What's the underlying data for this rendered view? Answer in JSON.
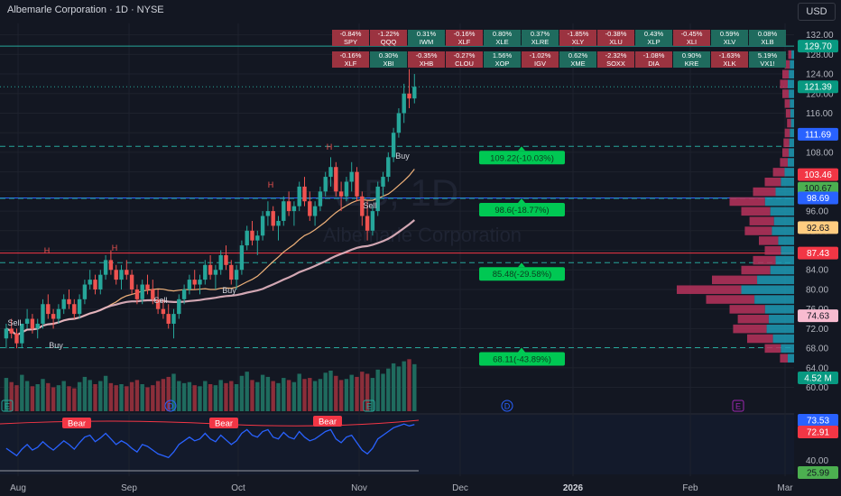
{
  "header": {
    "title": "Albemarle Corporation · 1D · NYSE",
    "currency_button": "USD"
  },
  "watermark": {
    "symbol": "ALB, 1D",
    "name": "Albemarle Corporation"
  },
  "colors": {
    "background": "#131722",
    "up": "#26a69a",
    "down": "#ef5350",
    "grid": "#1e222d",
    "text": "#d1d4dc"
  },
  "tiles": [
    {
      "pct": "-0.84%",
      "sym": "SPY",
      "dir": "dn"
    },
    {
      "pct": "-1.22%",
      "sym": "QQQ",
      "dir": "dn"
    },
    {
      "pct": "0.31%",
      "sym": "IWM",
      "dir": "up"
    },
    {
      "pct": "-0.16%",
      "sym": "XLF",
      "dir": "dn"
    },
    {
      "pct": "0.80%",
      "sym": "XLE",
      "dir": "up"
    },
    {
      "pct": "0.37%",
      "sym": "XLRE",
      "dir": "up"
    },
    {
      "pct": "-1.85%",
      "sym": "XLY",
      "dir": "dn"
    },
    {
      "pct": "-0.38%",
      "sym": "XLU",
      "dir": "dn"
    },
    {
      "pct": "0.43%",
      "sym": "XLP",
      "dir": "up"
    },
    {
      "pct": "-0.45%",
      "sym": "XLI",
      "dir": "dn"
    },
    {
      "pct": "0.59%",
      "sym": "XLV",
      "dir": "up"
    },
    {
      "pct": "0.08%",
      "sym": "XLB",
      "dir": "up"
    },
    {
      "pct": "-0.16%",
      "sym": "XLF",
      "dir": "dn"
    },
    {
      "pct": "0.30%",
      "sym": "XBI",
      "dir": "up"
    },
    {
      "pct": "-0.35%",
      "sym": "XHB",
      "dir": "dn"
    },
    {
      "pct": "-0.27%",
      "sym": "CLOU",
      "dir": "dn"
    },
    {
      "pct": "1.56%",
      "sym": "XOP",
      "dir": "up"
    },
    {
      "pct": "-1.02%",
      "sym": "IGV",
      "dir": "dn"
    },
    {
      "pct": "0.62%",
      "sym": "XME",
      "dir": "up"
    },
    {
      "pct": "-2.32%",
      "sym": "SOXX",
      "dir": "dn"
    },
    {
      "pct": "-1.08%",
      "sym": "DIA",
      "dir": "dn"
    },
    {
      "pct": "0.90%",
      "sym": "KRE",
      "dir": "up"
    },
    {
      "pct": "-1.63%",
      "sym": "XLK",
      "dir": "dn"
    },
    {
      "pct": "5.19%",
      "sym": "VX1!",
      "dir": "up"
    }
  ],
  "chart_data": {
    "type": "candlestick",
    "y_ticks": [
      132,
      128,
      124,
      120,
      116,
      112,
      108,
      104,
      100,
      96,
      92,
      88,
      84,
      80,
      76,
      72,
      68,
      64,
      60
    ],
    "x_ticks": [
      "Aug",
      "Sep",
      "Oct",
      "Nov",
      "Dec",
      "2026",
      "Feb",
      "Mar"
    ],
    "price_tags": [
      {
        "value": 129.7,
        "label": "129.70",
        "color": "#089981"
      },
      {
        "value": 121.39,
        "label": "121.39",
        "color": "#089981"
      },
      {
        "value": 111.69,
        "label": "111.69",
        "color": "#2962ff"
      },
      {
        "value": 103.46,
        "label": "103.46",
        "color": "#f23645"
      },
      {
        "value": 100.67,
        "label": "100.67",
        "color": "#4caf50"
      },
      {
        "value": 98.69,
        "label": "98.69",
        "color": "#2962ff"
      },
      {
        "value": 92.63,
        "label": "92.63",
        "color": "#ffcc80"
      },
      {
        "value": 87.43,
        "label": "87.43",
        "color": "#f23645"
      },
      {
        "value": 74.63,
        "label": "74.63",
        "color": "#f8bbd0"
      },
      {
        "value": 73.53,
        "label": "73.53",
        "color": "#2962ff"
      },
      {
        "value": 72.91,
        "label": "72.91",
        "color": "#f23645"
      },
      {
        "value": 25.99,
        "label": "25.99",
        "color": "#4caf50"
      },
      {
        "value": 4.52,
        "label": "4.52 M",
        "color": "#089981"
      }
    ],
    "levels": [
      {
        "value": 109.22,
        "label": "109.22(-10.03%)"
      },
      {
        "value": 98.6,
        "label": "98.6(-18.77%)"
      },
      {
        "value": 85.48,
        "label": "85.48(-29.58%)"
      },
      {
        "value": 68.11,
        "label": "68.11(-43.89%)"
      }
    ],
    "horizontal_lines": [
      {
        "value": 129.7,
        "color": "#26a69a"
      },
      {
        "value": 98.69,
        "color": "#2962ff"
      },
      {
        "value": 87.43,
        "color": "#f23645"
      }
    ],
    "signals": [
      "Sell",
      "Buy",
      "Sell",
      "Buy",
      "Sell",
      "Buy"
    ],
    "pivots": [
      "H",
      "H",
      "H",
      "H"
    ],
    "oscillator_tags": [
      "Bear",
      "Bear",
      "Bear"
    ],
    "event_markers": [
      "E",
      "D",
      "E",
      "D",
      "E"
    ],
    "candles": [
      [
        70,
        73,
        68,
        72
      ],
      [
        72,
        74,
        70,
        71
      ],
      [
        71,
        72,
        68,
        69
      ],
      [
        69,
        73,
        68,
        73
      ],
      [
        73,
        76,
        72,
        74
      ],
      [
        74,
        75,
        71,
        72
      ],
      [
        72,
        74,
        70,
        73
      ],
      [
        73,
        78,
        72,
        77
      ],
      [
        77,
        79,
        74,
        75
      ],
      [
        75,
        76,
        72,
        74
      ],
      [
        74,
        77,
        73,
        76
      ],
      [
        76,
        79,
        75,
        78
      ],
      [
        78,
        80,
        76,
        77
      ],
      [
        77,
        78,
        74,
        75
      ],
      [
        75,
        79,
        74,
        78
      ],
      [
        78,
        82,
        77,
        81
      ],
      [
        81,
        84,
        80,
        82
      ],
      [
        82,
        83,
        79,
        80
      ],
      [
        80,
        84,
        79,
        83
      ],
      [
        83,
        87,
        82,
        86
      ],
      [
        86,
        88,
        83,
        84
      ],
      [
        84,
        85,
        81,
        82
      ],
      [
        82,
        85,
        80,
        84
      ],
      [
        84,
        86,
        82,
        83
      ],
      [
        83,
        84,
        79,
        80
      ],
      [
        80,
        81,
        77,
        78
      ],
      [
        78,
        82,
        77,
        81
      ],
      [
        81,
        83,
        79,
        80
      ],
      [
        80,
        82,
        77,
        78
      ],
      [
        78,
        80,
        75,
        76
      ],
      [
        76,
        78,
        74,
        75
      ],
      [
        75,
        77,
        72,
        73
      ],
      [
        73,
        76,
        70,
        75
      ],
      [
        75,
        79,
        74,
        78
      ],
      [
        78,
        81,
        77,
        80
      ],
      [
        80,
        83,
        79,
        82
      ],
      [
        82,
        84,
        80,
        81
      ],
      [
        81,
        83,
        79,
        82
      ],
      [
        82,
        86,
        81,
        85
      ],
      [
        85,
        87,
        82,
        83
      ],
      [
        83,
        85,
        80,
        84
      ],
      [
        84,
        88,
        83,
        87
      ],
      [
        87,
        89,
        84,
        85
      ],
      [
        85,
        86,
        81,
        82
      ],
      [
        82,
        85,
        80,
        84
      ],
      [
        84,
        90,
        83,
        89
      ],
      [
        89,
        93,
        88,
        92
      ],
      [
        92,
        94,
        89,
        90
      ],
      [
        90,
        92,
        87,
        91
      ],
      [
        91,
        96,
        90,
        95
      ],
      [
        95,
        98,
        93,
        96
      ],
      [
        96,
        97,
        92,
        93
      ],
      [
        93,
        95,
        90,
        94
      ],
      [
        94,
        99,
        93,
        98
      ],
      [
        98,
        100,
        95,
        96
      ],
      [
        96,
        98,
        93,
        97
      ],
      [
        97,
        102,
        96,
        101
      ],
      [
        101,
        103,
        97,
        98
      ],
      [
        98,
        100,
        94,
        95
      ],
      [
        95,
        98,
        93,
        97
      ],
      [
        97,
        101,
        96,
        100
      ],
      [
        100,
        104,
        99,
        103
      ],
      [
        103,
        107,
        101,
        105
      ],
      [
        105,
        106,
        99,
        100
      ],
      [
        100,
        102,
        96,
        99
      ],
      [
        99,
        103,
        98,
        102
      ],
      [
        102,
        106,
        100,
        104
      ],
      [
        104,
        105,
        98,
        99
      ],
      [
        99,
        100,
        93,
        95
      ],
      [
        95,
        98,
        90,
        92
      ],
      [
        92,
        97,
        91,
        96
      ],
      [
        96,
        102,
        95,
        101
      ],
      [
        101,
        104,
        99,
        103
      ],
      [
        103,
        108,
        102,
        107
      ],
      [
        107,
        113,
        106,
        112
      ],
      [
        112,
        117,
        111,
        116
      ],
      [
        116,
        122,
        114,
        120
      ],
      [
        120,
        125,
        117,
        119
      ],
      [
        119,
        124,
        118,
        121.39
      ]
    ],
    "volume": [
      3.2,
      2.8,
      2.5,
      3.5,
      2.9,
      2.4,
      2.6,
      3.1,
      2.7,
      2.3,
      2.5,
      2.9,
      2.4,
      2.2,
      2.8,
      3.3,
      3.0,
      2.6,
      2.9,
      3.4,
      2.7,
      2.5,
      2.6,
      2.4,
      2.8,
      3.0,
      2.6,
      2.3,
      2.5,
      2.9,
      3.1,
      3.3,
      3.6,
      2.9,
      2.7,
      2.8,
      2.5,
      2.4,
      2.9,
      2.6,
      2.5,
      3.0,
      2.7,
      2.9,
      2.6,
      3.4,
      3.8,
      3.0,
      2.8,
      3.5,
      3.3,
      2.9,
      2.7,
      3.2,
      3.0,
      2.8,
      3.6,
      3.1,
      3.2,
      2.9,
      3.1,
      3.7,
      3.9,
      3.4,
      3.0,
      3.1,
      3.5,
      3.3,
      3.8,
      3.6,
      3.2,
      4.0,
      3.6,
      4.1,
      4.6,
      4.3,
      4.8,
      5.0,
      4.52
    ],
    "oscillator": [
      48,
      44,
      40,
      47,
      52,
      46,
      49,
      55,
      50,
      46,
      51,
      56,
      52,
      47,
      54,
      60,
      62,
      55,
      59,
      64,
      58,
      52,
      56,
      53,
      48,
      44,
      52,
      50,
      46,
      42,
      40,
      38,
      44,
      52,
      56,
      60,
      56,
      58,
      64,
      58,
      55,
      62,
      57,
      52,
      56,
      64,
      68,
      62,
      60,
      66,
      68,
      60,
      58,
      65,
      60,
      58,
      66,
      60,
      56,
      58,
      62,
      66,
      68,
      58,
      54,
      60,
      62,
      54,
      46,
      42,
      48,
      58,
      62,
      66,
      70,
      72,
      74,
      72,
      73.53
    ],
    "volume_profile": [
      {
        "price": 128,
        "length": 0.05
      },
      {
        "price": 126,
        "length": 0.08
      },
      {
        "price": 124,
        "length": 0.1
      },
      {
        "price": 122,
        "length": 0.12
      },
      {
        "price": 120,
        "length": 0.1
      },
      {
        "price": 118,
        "length": 0.08
      },
      {
        "price": 116,
        "length": 0.07
      },
      {
        "price": 114,
        "length": 0.06
      },
      {
        "price": 112,
        "length": 0.08
      },
      {
        "price": 110,
        "length": 0.09
      },
      {
        "price": 108,
        "length": 0.1
      },
      {
        "price": 106,
        "length": 0.12
      },
      {
        "price": 104,
        "length": 0.18
      },
      {
        "price": 102,
        "length": 0.25
      },
      {
        "price": 100,
        "length": 0.35
      },
      {
        "price": 98,
        "length": 0.55
      },
      {
        "price": 96,
        "length": 0.45
      },
      {
        "price": 94,
        "length": 0.38
      },
      {
        "price": 92,
        "length": 0.42
      },
      {
        "price": 90,
        "length": 0.3
      },
      {
        "price": 88,
        "length": 0.25
      },
      {
        "price": 86,
        "length": 0.35
      },
      {
        "price": 84,
        "length": 0.45
      },
      {
        "price": 82,
        "length": 0.7
      },
      {
        "price": 80,
        "length": 1.0
      },
      {
        "price": 78,
        "length": 0.75
      },
      {
        "price": 76,
        "length": 0.55
      },
      {
        "price": 74,
        "length": 0.48
      },
      {
        "price": 72,
        "length": 0.52
      },
      {
        "price": 70,
        "length": 0.4
      },
      {
        "price": 68,
        "length": 0.25
      },
      {
        "price": 66,
        "length": 0.12
      }
    ]
  }
}
